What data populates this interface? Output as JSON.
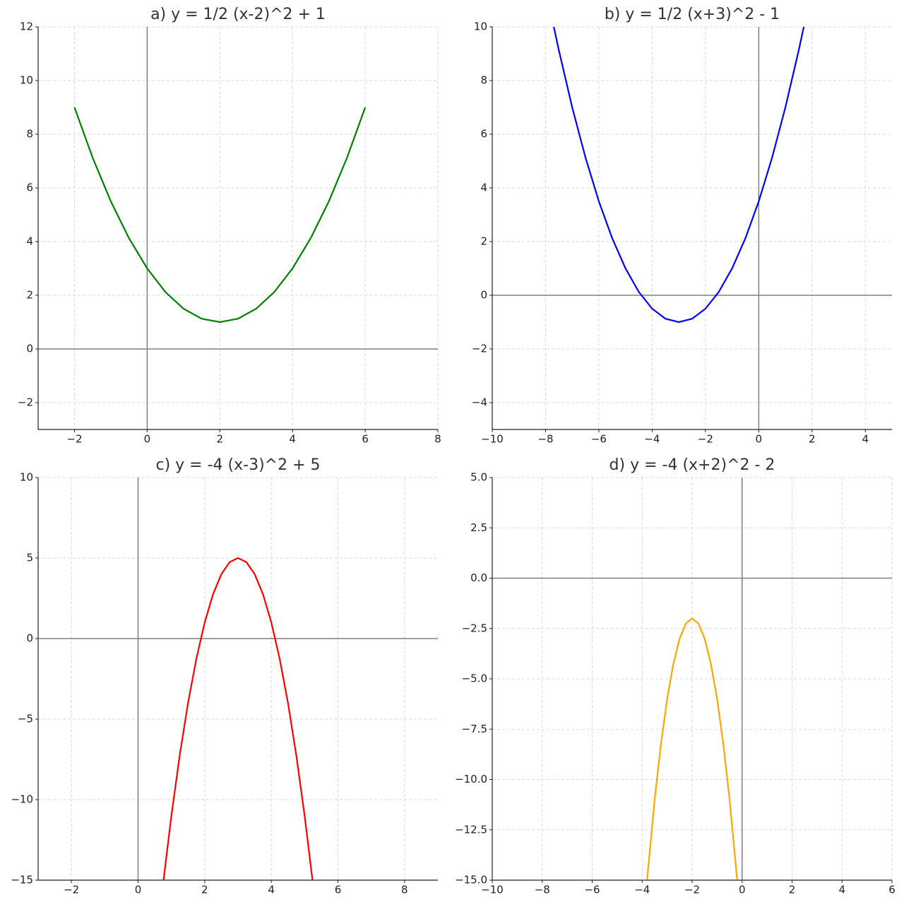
{
  "chart_data": [
    {
      "type": "line",
      "title": "a) y = 1/2 (x-2)^2 + 1",
      "color": "#008000",
      "grid": true,
      "x": [
        -2,
        -1.5,
        -1,
        -0.5,
        0,
        0.5,
        1,
        1.5,
        2,
        2.5,
        3,
        3.5,
        4,
        4.5,
        5,
        5.5,
        6
      ],
      "values": [
        9,
        7.125,
        5.5,
        4.125,
        3,
        2.125,
        1.5,
        1.125,
        1,
        1.125,
        1.5,
        2.125,
        3,
        4.125,
        5.5,
        7.125,
        9
      ],
      "xlim": [
        -3,
        8
      ],
      "ylim": [
        -3,
        12
      ],
      "xticks": [
        {
          "value": -2,
          "label": "−2"
        },
        0,
        2,
        4,
        6,
        8
      ],
      "yticks": [
        {
          "value": -2,
          "label": "−2"
        },
        0,
        2,
        4,
        6,
        8,
        10,
        12
      ]
    },
    {
      "type": "line",
      "title": "b) y = 1/2 (x+3)^2 - 1",
      "color": "#0000ff",
      "grid": true,
      "x": [
        -7.69,
        -7.5,
        -7,
        -6.5,
        -6,
        -5.5,
        -5,
        -4.5,
        -4,
        -3.5,
        -3,
        -2.5,
        -2,
        -1.5,
        -1,
        -0.5,
        0,
        0.5,
        1,
        1.5,
        1.69
      ],
      "values": [
        10,
        9.125,
        7,
        5.125,
        3.5,
        2.125,
        1,
        0.125,
        -0.5,
        -0.875,
        -1,
        -0.875,
        -0.5,
        0.125,
        1,
        2.125,
        3.5,
        5.125,
        7,
        9.125,
        10
      ],
      "xlim": [
        -10,
        5
      ],
      "ylim": [
        -5,
        10
      ],
      "xticks": [
        {
          "value": -10,
          "label": "−10"
        },
        {
          "value": -8,
          "label": "−8"
        },
        {
          "value": -6,
          "label": "−6"
        },
        {
          "value": -4,
          "label": "−4"
        },
        {
          "value": -2,
          "label": "−2"
        },
        0,
        2,
        4
      ],
      "yticks": [
        {
          "value": -4,
          "label": "−4"
        },
        {
          "value": -2,
          "label": "−2"
        },
        0,
        2,
        4,
        6,
        8,
        10
      ]
    },
    {
      "type": "line",
      "title": "c) y = -4 (x-3)^2 + 5",
      "color": "#ff0000",
      "grid": true,
      "x": [
        0.76,
        1,
        1.25,
        1.5,
        1.75,
        2,
        2.25,
        2.5,
        2.75,
        3,
        3.25,
        3.5,
        3.75,
        4,
        4.25,
        4.5,
        4.75,
        5,
        5.24
      ],
      "values": [
        -15.07,
        -11,
        -7.25,
        -4,
        -1.25,
        1,
        2.75,
        4,
        4.75,
        5,
        4.75,
        4,
        2.75,
        1,
        -1.25,
        -4,
        -7.25,
        -11,
        -15.07
      ],
      "xlim": [
        -3,
        9
      ],
      "ylim": [
        -15,
        10
      ],
      "xticks": [
        {
          "value": -2,
          "label": "−2"
        },
        0,
        2,
        4,
        6,
        8
      ],
      "yticks": [
        {
          "value": -15,
          "label": "−15"
        },
        {
          "value": -10,
          "label": "−10"
        },
        {
          "value": -5,
          "label": "−5"
        },
        0,
        5,
        10
      ]
    },
    {
      "type": "line",
      "title": "d) y = -4 (x+2)^2 - 2",
      "color": "#ffa500",
      "grid": true,
      "x": [
        -3.8,
        -3.5,
        -3.25,
        -3,
        -2.75,
        -2.5,
        -2.25,
        -2,
        -1.75,
        -1.5,
        -1.25,
        -1,
        -0.75,
        -0.5,
        -0.2
      ],
      "values": [
        -14.96,
        -11,
        -8.25,
        -6,
        -4.25,
        -3,
        -2.25,
        -2,
        -2.25,
        -3,
        -4.25,
        -6,
        -8.25,
        -11,
        -14.96
      ],
      "xlim": [
        -10,
        6
      ],
      "ylim": [
        -15,
        5
      ],
      "xticks": [
        {
          "value": -10,
          "label": "−10"
        },
        {
          "value": -8,
          "label": "−8"
        },
        {
          "value": -6,
          "label": "−6"
        },
        {
          "value": -4,
          "label": "−4"
        },
        {
          "value": -2,
          "label": "−2"
        },
        0,
        2,
        4,
        6
      ],
      "yticks": [
        {
          "value": -15,
          "label": "−15.0"
        },
        {
          "value": -12.5,
          "label": "−12.5"
        },
        {
          "value": -10,
          "label": "−10.0"
        },
        {
          "value": -7.5,
          "label": "−7.5"
        },
        {
          "value": -5,
          "label": "−5.0"
        },
        {
          "value": -2.5,
          "label": "−2.5"
        },
        {
          "value": 0,
          "label": "0.0"
        },
        {
          "value": 2.5,
          "label": "2.5"
        },
        {
          "value": 5,
          "label": "5.0"
        }
      ]
    }
  ]
}
